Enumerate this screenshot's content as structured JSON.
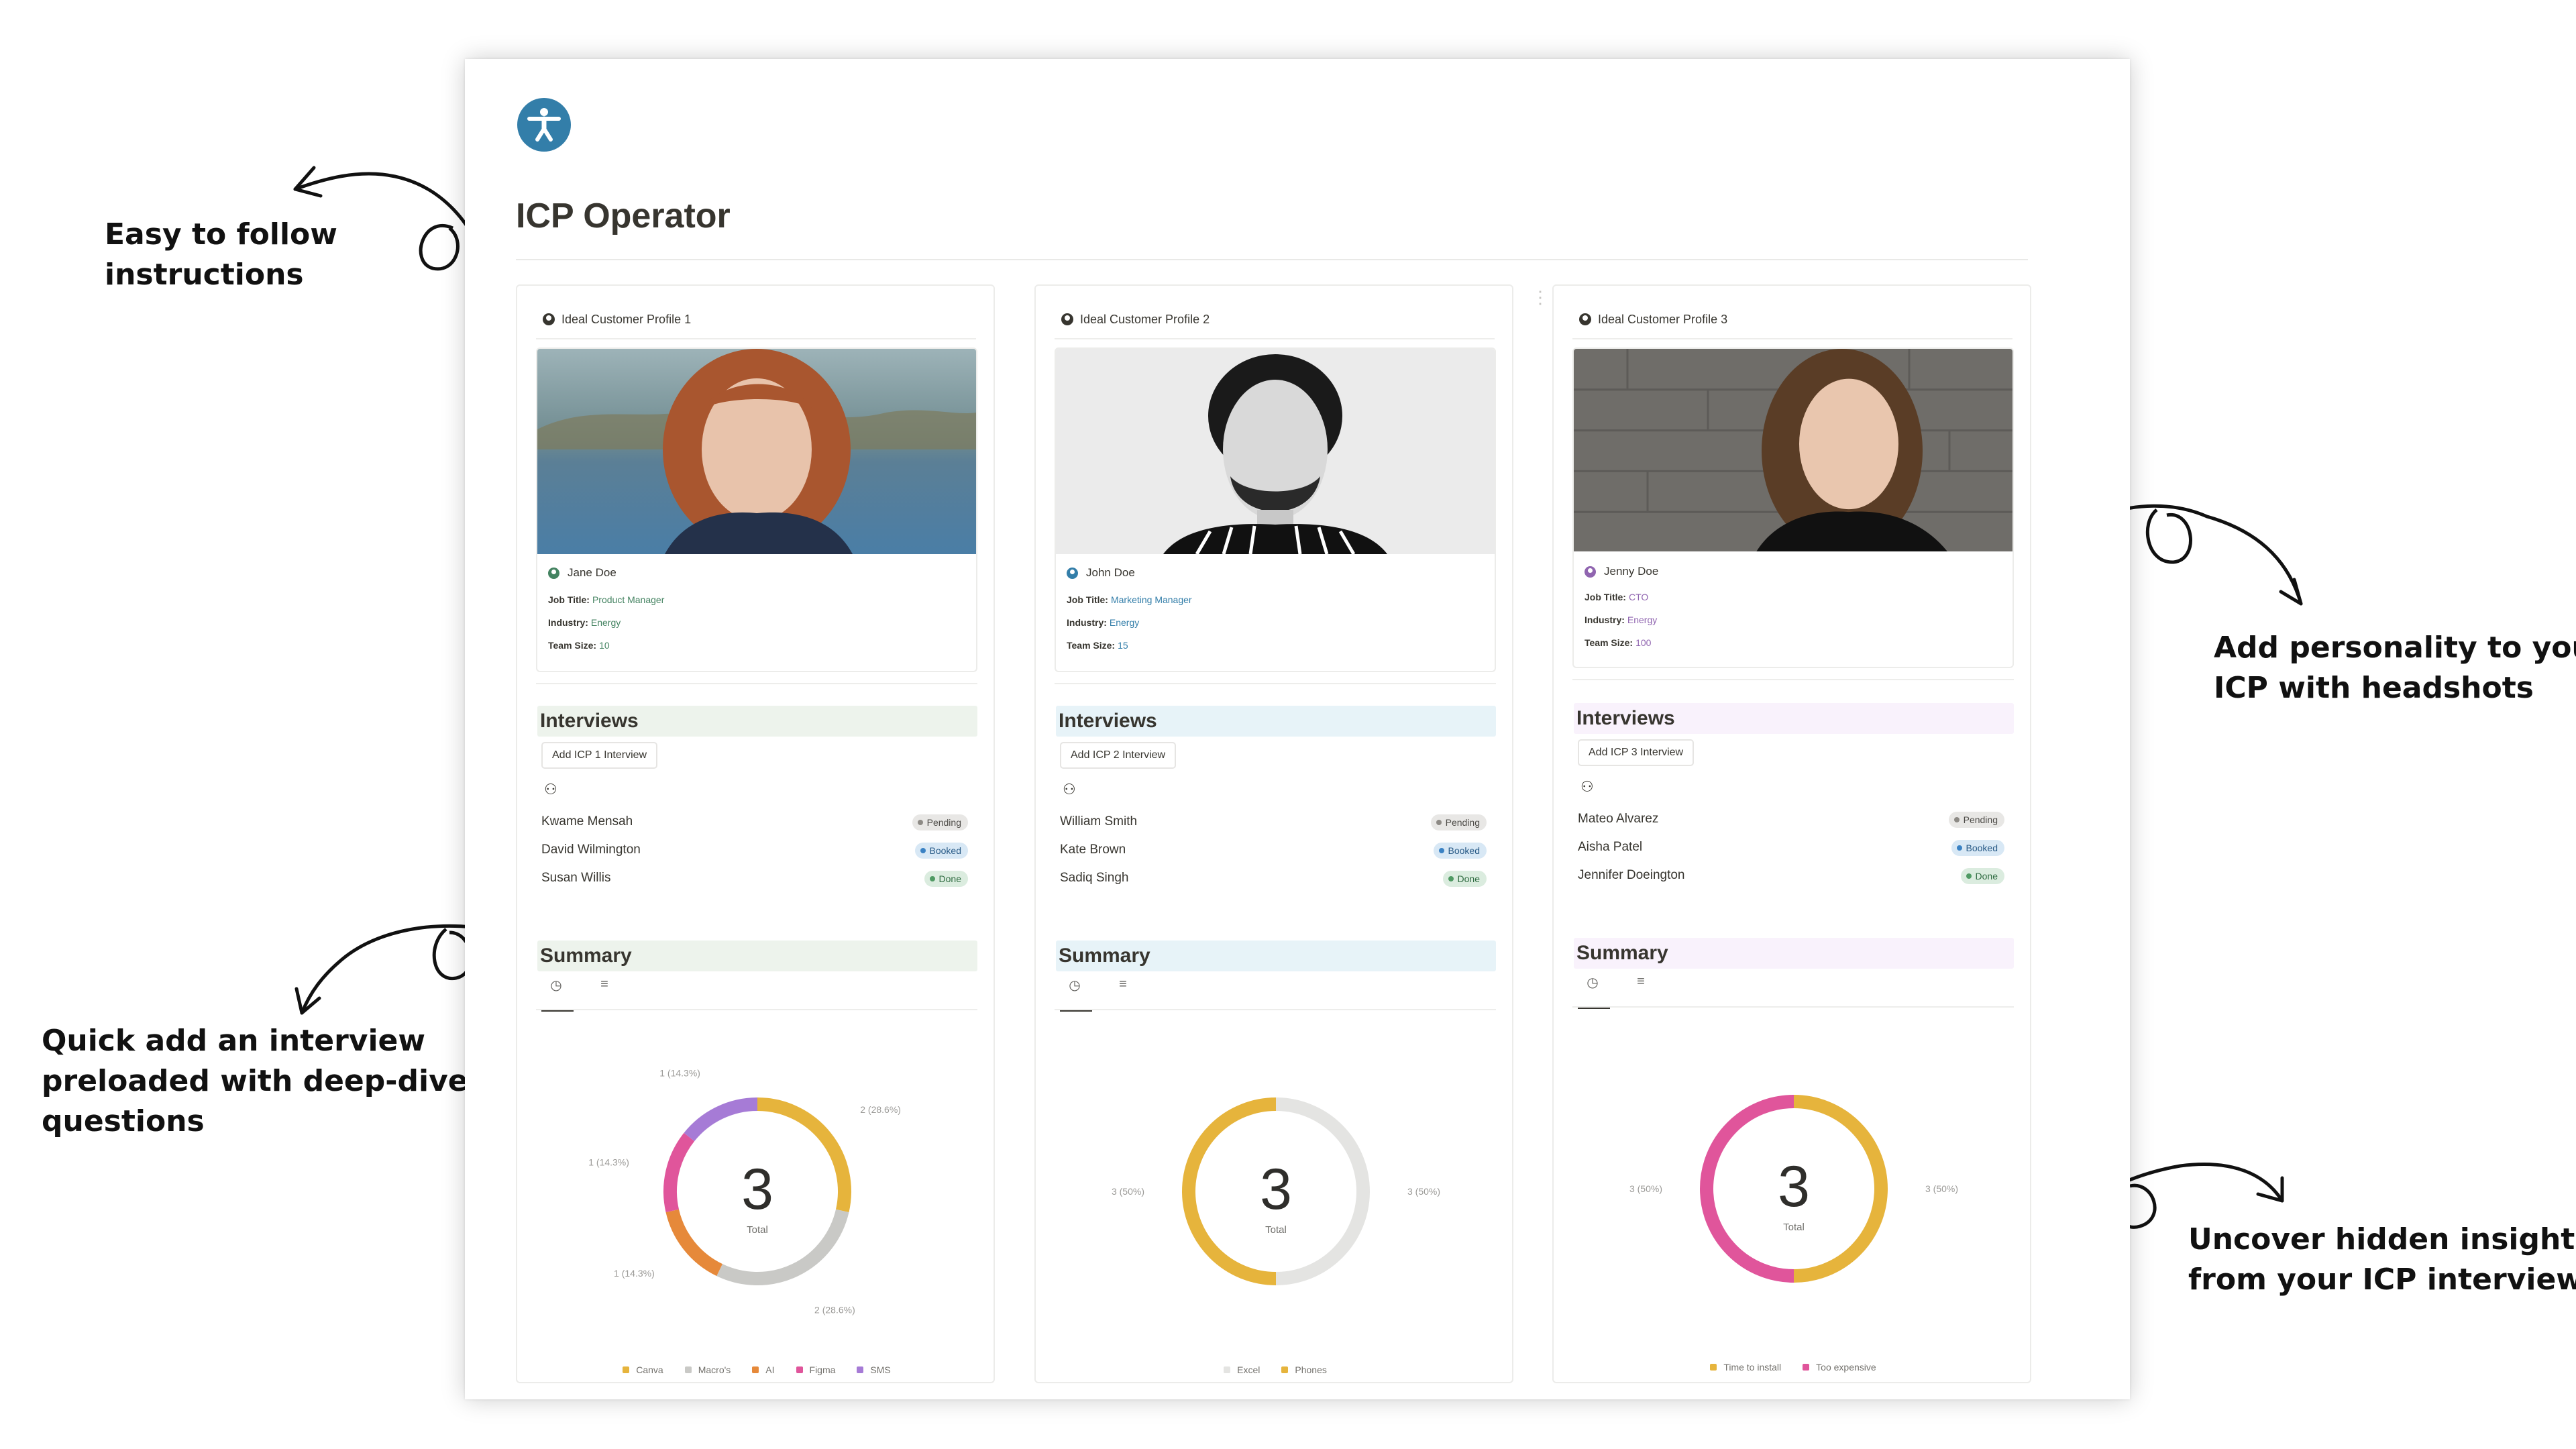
{
  "page": {
    "title": "ICP Operator",
    "icon": "accessibility-icon"
  },
  "colors": {
    "accent_blue": "#337ea9",
    "green_tint": "#edf3ec",
    "blue_tint": "#e7f3f8",
    "purple_tint": "#f9f2fc",
    "pending": "#e8e7e5",
    "booked": "#d8e8f5",
    "done": "#dbecdf"
  },
  "annotations": {
    "easy": [
      "Easy to follow",
      "instructions"
    ],
    "personality": [
      "Add personality to your",
      "ICP with headshots"
    ],
    "quick": [
      "Quick add an interview",
      "preloaded with deep-dive",
      "questions"
    ],
    "uncover": [
      "Uncover hidden insights",
      "from your ICP interviews"
    ]
  },
  "profiles": [
    {
      "header": "Ideal Customer Profile 1",
      "name": "Jane Doe",
      "labels": {
        "job": "Job Title:",
        "industry": "Industry:",
        "team": "Team Size:"
      },
      "job_title": "Product Manager",
      "industry": "Energy",
      "team_size": "10",
      "value_color": "#448361",
      "dot_color": "#448361",
      "interviews_title": "Interviews",
      "add_label": "Add ICP 1 Interview",
      "interviews": [
        {
          "name": "Kwame Mensah",
          "status": "Pending"
        },
        {
          "name": "David Wilmington",
          "status": "Booked"
        },
        {
          "name": "Susan Willis",
          "status": "Done"
        }
      ],
      "summary_title": "Summary",
      "chart_total": "3",
      "chart_total_label": "Total",
      "chart_labels": [
        "2 (28.6%)",
        "2 (28.6%)",
        "1 (14.3%)",
        "1 (14.3%)",
        "1 (14.3%)"
      ]
    },
    {
      "header": "Ideal Customer Profile 2",
      "name": "John Doe",
      "labels": {
        "job": "Job Title:",
        "industry": "Industry:",
        "team": "Team Size:"
      },
      "job_title": "Marketing Manager",
      "industry": "Energy",
      "team_size": "15",
      "value_color": "#337ea9",
      "dot_color": "#337ea9",
      "interviews_title": "Interviews",
      "add_label": "Add ICP 2 Interview",
      "interviews": [
        {
          "name": "William Smith",
          "status": "Pending"
        },
        {
          "name": "Kate Brown",
          "status": "Booked"
        },
        {
          "name": "Sadiq Singh",
          "status": "Done"
        }
      ],
      "summary_title": "Summary",
      "chart_total": "3",
      "chart_total_label": "Total",
      "chart_labels": [
        "3 (50%)",
        "3 (50%)"
      ]
    },
    {
      "header": "Ideal Customer Profile 3",
      "name": "Jenny Doe",
      "labels": {
        "job": "Job Title:",
        "industry": "Industry:",
        "team": "Team Size:"
      },
      "job_title": "CTO",
      "industry": "Energy",
      "team_size": "100",
      "value_color": "#9065b0",
      "dot_color": "#9065b0",
      "interviews_title": "Interviews",
      "add_label": "Add ICP 3 Interview",
      "interviews": [
        {
          "name": "Mateo Alvarez",
          "status": "Pending"
        },
        {
          "name": "Aisha Patel",
          "status": "Booked"
        },
        {
          "name": "Jennifer Doeington",
          "status": "Done"
        }
      ],
      "summary_title": "Summary",
      "chart_total": "3",
      "chart_total_label": "Total",
      "chart_labels": [
        "3 (50%)",
        "3 (50%)"
      ]
    }
  ],
  "chart_data": [
    {
      "type": "pie",
      "title": "",
      "center_value": 3,
      "center_label": "Total",
      "categories": [
        "Canva",
        "Macro's",
        "AI",
        "Figma",
        "SMS"
      ],
      "values": [
        2,
        2,
        1,
        1,
        1
      ],
      "colors": [
        "#e6b43c",
        "#c9c9c6",
        "#e6893a",
        "#e0559b",
        "#a67bd6"
      ],
      "legend": "bottom"
    },
    {
      "type": "pie",
      "title": "",
      "center_value": 3,
      "center_label": "Total",
      "categories": [
        "Excel",
        "Phones"
      ],
      "values": [
        3,
        3
      ],
      "colors": [
        "#e4e4e2",
        "#e6b43c"
      ],
      "legend": "bottom"
    },
    {
      "type": "pie",
      "title": "",
      "center_value": 3,
      "center_label": "Total",
      "categories": [
        "Time to install",
        "Too expensive"
      ],
      "values": [
        3,
        3
      ],
      "colors": [
        "#e6b43c",
        "#e0559b"
      ],
      "legend": "bottom"
    }
  ]
}
